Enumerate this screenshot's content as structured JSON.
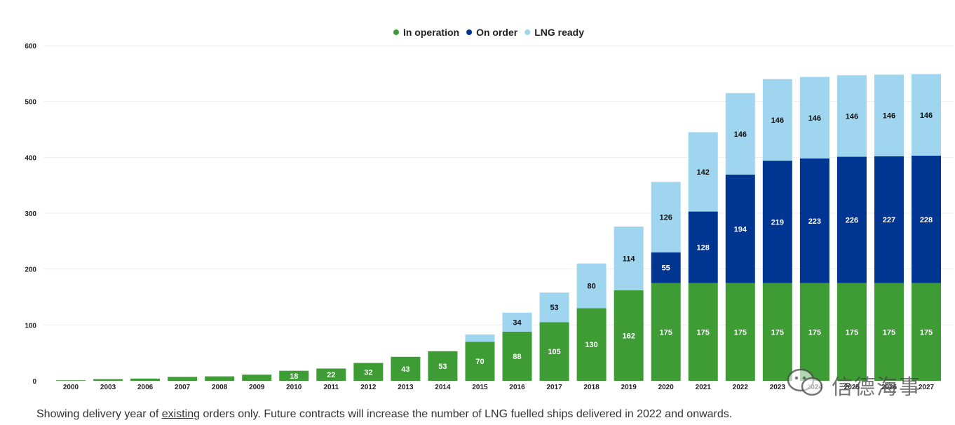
{
  "chart_data": {
    "type": "bar",
    "stacked": true,
    "categories": [
      "2000",
      "2003",
      "2006",
      "2007",
      "2008",
      "2009",
      "2010",
      "2011",
      "2012",
      "2013",
      "2014",
      "2015",
      "2016",
      "2017",
      "2018",
      "2019",
      "2020",
      "2021",
      "2022",
      "2023",
      "2024",
      "2025",
      "2026",
      "2027"
    ],
    "series": [
      {
        "name": "In operation",
        "color": "#3e9c35",
        "values": [
          1,
          3,
          4,
          7,
          8,
          11,
          18,
          22,
          32,
          43,
          53,
          70,
          88,
          105,
          130,
          162,
          175,
          175,
          175,
          175,
          175,
          175,
          175,
          175
        ],
        "labels": [
          "",
          "",
          "",
          "",
          "",
          "",
          "18",
          "22",
          "32",
          "43",
          "53",
          "70",
          "88",
          "105",
          "130",
          "162",
          "175",
          "175",
          "175",
          "175",
          "175",
          "175",
          "175",
          "175"
        ]
      },
      {
        "name": "On order",
        "color": "#003591",
        "values": [
          0,
          0,
          0,
          0,
          0,
          0,
          0,
          0,
          0,
          0,
          0,
          0,
          0,
          0,
          0,
          0,
          55,
          128,
          194,
          219,
          223,
          226,
          227,
          228
        ],
        "labels": [
          "",
          "",
          "",
          "",
          "",
          "",
          "",
          "",
          "",
          "",
          "",
          "",
          "",
          "",
          "",
          "",
          "55",
          "128",
          "194",
          "219",
          "223",
          "226",
          "227",
          "228"
        ]
      },
      {
        "name": "LNG ready",
        "color": "#9fd5ef",
        "values": [
          0,
          0,
          0,
          0,
          0,
          0,
          0,
          0,
          0,
          0,
          0,
          13,
          34,
          53,
          80,
          114,
          126,
          142,
          146,
          146,
          146,
          146,
          146,
          146
        ],
        "labels": [
          "",
          "",
          "",
          "",
          "",
          "",
          "",
          "",
          "",
          "",
          "",
          "",
          "34",
          "53",
          "80",
          "114",
          "126",
          "142",
          "146",
          "146",
          "146",
          "146",
          "146",
          "146"
        ]
      }
    ],
    "y_ticks": [
      "0",
      "100",
      "200",
      "300",
      "400",
      "500",
      "600"
    ],
    "ylim": [
      0,
      600
    ],
    "grid": true,
    "legend_position": "top-center",
    "title": "",
    "xlabel": "",
    "ylabel": ""
  },
  "footnote": {
    "before": "Showing delivery year of ",
    "underlined": "existing",
    "after": " orders only. Future contracts will increase the number of LNG fuelled ships delivered in 2022 and onwards."
  },
  "watermark": {
    "text": "信德海事",
    "icon": "wechat-icon"
  }
}
